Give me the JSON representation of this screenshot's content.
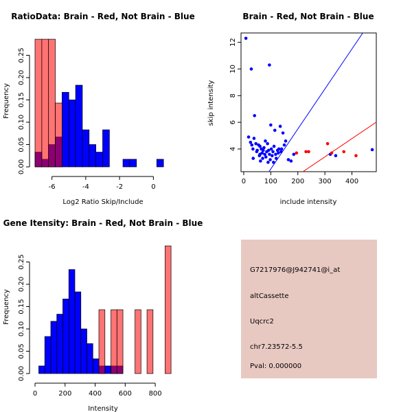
{
  "colors": {
    "brain": "#ff0000",
    "not_brain": "#0000ff",
    "overlap": "#6a1f8c",
    "axis": "#000000",
    "panel_bg": "#e8c9c2",
    "pval": "#aa0000"
  },
  "info_panel": {
    "probe_id": "G7217976@J942741@i_at",
    "event_type": "altCassette",
    "gene": "Uqcrc2",
    "location": "chr7.23572-5.5",
    "pval": "Pval: 0.000000"
  },
  "chart_data": [
    {
      "id": "ratio",
      "type": "bar",
      "title": "RatioData: Brain - Red, Not Brain - Blue",
      "xlabel": "Log2 Ratio Skip/Include",
      "ylabel": "Frequency",
      "xlim": [
        -7,
        1
      ],
      "ylim": [
        0,
        0.3
      ],
      "xticks": [
        -6,
        -4,
        -2,
        0
      ],
      "yticks": [
        0.0,
        0.05,
        0.1,
        0.15,
        0.2,
        0.25
      ],
      "ytick_labels": [
        "0.00",
        "0.05",
        "0.10",
        "0.15",
        "0.20",
        "0.25"
      ],
      "series": [
        {
          "name": "Not Brain",
          "color_key": "not_brain",
          "bins": [
            [
              -7.0,
              -6.6,
              0.033
            ],
            [
              -6.6,
              -6.2,
              0.017
            ],
            [
              -6.2,
              -5.8,
              0.05
            ],
            [
              -5.8,
              -5.4,
              0.067
            ],
            [
              -5.4,
              -5.0,
              0.167
            ],
            [
              -5.0,
              -4.6,
              0.15
            ],
            [
              -4.6,
              -4.2,
              0.183
            ],
            [
              -4.2,
              -3.8,
              0.083
            ],
            [
              -3.8,
              -3.4,
              0.05
            ],
            [
              -3.4,
              -3.0,
              0.033
            ],
            [
              -3.0,
              -2.6,
              0.083
            ],
            [
              -1.8,
              -1.4,
              0.017
            ],
            [
              -1.4,
              -1.0,
              0.017
            ],
            [
              0.2,
              0.6,
              0.017
            ]
          ]
        },
        {
          "name": "Brain",
          "color_key": "brain",
          "bins": [
            [
              -7.0,
              -6.6,
              0.286
            ],
            [
              -6.6,
              -6.2,
              0.286
            ],
            [
              -6.2,
              -5.8,
              0.286
            ],
            [
              -5.8,
              -5.4,
              0.143
            ]
          ]
        }
      ]
    },
    {
      "id": "scatter",
      "type": "scatter",
      "title": "Brain - Red, Not Brain - Blue",
      "xlabel": "include intensity",
      "ylabel": "skip intensity",
      "xlim": [
        -10,
        490
      ],
      "ylim": [
        2.3,
        12.7
      ],
      "xticks": [
        0,
        100,
        200,
        300,
        400
      ],
      "yticks": [
        4,
        6,
        8,
        10,
        12
      ],
      "lines": [
        {
          "name": "not_brain_fit",
          "color_key": "not_brain",
          "slope": 0.03,
          "intercept": -0.5
        },
        {
          "name": "brain_fit",
          "color_key": "brain",
          "slope": 0.0137,
          "intercept": -0.7
        }
      ],
      "series": [
        {
          "name": "Not Brain",
          "color_key": "not_brain",
          "points": [
            [
              8,
              12.3
            ],
            [
              28,
              10.0
            ],
            [
              95,
              10.3
            ],
            [
              18,
              4.9
            ],
            [
              25,
              4.5
            ],
            [
              30,
              4.3
            ],
            [
              34,
              4.0
            ],
            [
              38,
              4.8
            ],
            [
              40,
              6.5
            ],
            [
              45,
              4.4
            ],
            [
              48,
              3.8
            ],
            [
              50,
              3.9
            ],
            [
              55,
              4.3
            ],
            [
              58,
              3.5
            ],
            [
              60,
              4.2
            ],
            [
              62,
              3.1
            ],
            [
              65,
              4.0
            ],
            [
              68,
              3.7
            ],
            [
              70,
              3.3
            ],
            [
              72,
              3.9
            ],
            [
              75,
              4.1
            ],
            [
              78,
              3.6
            ],
            [
              80,
              4.6
            ],
            [
              82,
              3.4
            ],
            [
              85,
              3.8
            ],
            [
              88,
              4.4
            ],
            [
              90,
              3.0
            ],
            [
              92,
              3.9
            ],
            [
              95,
              3.6
            ],
            [
              98,
              3.2
            ],
            [
              100,
              5.8
            ],
            [
              102,
              4.0
            ],
            [
              105,
              3.5
            ],
            [
              108,
              3.8
            ],
            [
              110,
              3.0
            ],
            [
              112,
              4.2
            ],
            [
              115,
              5.4
            ],
            [
              118,
              3.6
            ],
            [
              120,
              3.3
            ],
            [
              125,
              3.9
            ],
            [
              128,
              3.7
            ],
            [
              130,
              4.0
            ],
            [
              135,
              5.7
            ],
            [
              138,
              3.8
            ],
            [
              140,
              4.0
            ],
            [
              145,
              5.2
            ],
            [
              150,
              4.3
            ],
            [
              155,
              4.6
            ],
            [
              165,
              3.2
            ],
            [
              175,
              3.1
            ],
            [
              185,
              3.6
            ],
            [
              320,
              3.6
            ],
            [
              340,
              3.5
            ],
            [
              475,
              3.95
            ],
            [
              35,
              3.3
            ],
            [
              60,
              3.6
            ]
          ]
        },
        {
          "name": "Brain",
          "color_key": "brain",
          "points": [
            [
              195,
              3.7
            ],
            [
              230,
              3.8
            ],
            [
              240,
              3.8
            ],
            [
              310,
              4.4
            ],
            [
              325,
              3.7
            ],
            [
              370,
              3.8
            ],
            [
              415,
              3.5
            ]
          ]
        }
      ]
    },
    {
      "id": "gene",
      "type": "bar",
      "title": "Gene Itensity: Brain - Red, Not Brain - Blue",
      "xlabel": "Intensity",
      "ylabel": "Frequency",
      "xlim": [
        0,
        900
      ],
      "ylim": [
        0,
        0.3
      ],
      "xticks": [
        0,
        200,
        400,
        600,
        800
      ],
      "yticks": [
        0.0,
        0.05,
        0.1,
        0.15,
        0.2,
        0.25
      ],
      "ytick_labels": [
        "0.00",
        "0.05",
        "0.10",
        "0.15",
        "0.20",
        "0.25"
      ],
      "series": [
        {
          "name": "Not Brain",
          "color_key": "not_brain",
          "bins": [
            [
              25,
              65,
              0.017
            ],
            [
              65,
              105,
              0.083
            ],
            [
              105,
              145,
              0.117
            ],
            [
              145,
              185,
              0.133
            ],
            [
              185,
              225,
              0.167
            ],
            [
              225,
              265,
              0.233
            ],
            [
              265,
              305,
              0.183
            ],
            [
              305,
              345,
              0.1
            ],
            [
              345,
              385,
              0.067
            ],
            [
              385,
              425,
              0.033
            ],
            [
              425,
              465,
              0.017
            ],
            [
              465,
              505,
              0.017
            ],
            [
              505,
              545,
              0.017
            ],
            [
              545,
              585,
              0.017
            ]
          ]
        },
        {
          "name": "Brain",
          "color_key": "brain",
          "bins": [
            [
              425,
              465,
              0.143
            ],
            [
              505,
              545,
              0.143
            ],
            [
              545,
              585,
              0.143
            ],
            [
              665,
              705,
              0.143
            ],
            [
              745,
              785,
              0.143
            ],
            [
              865,
              905,
              0.286
            ]
          ]
        }
      ]
    }
  ]
}
